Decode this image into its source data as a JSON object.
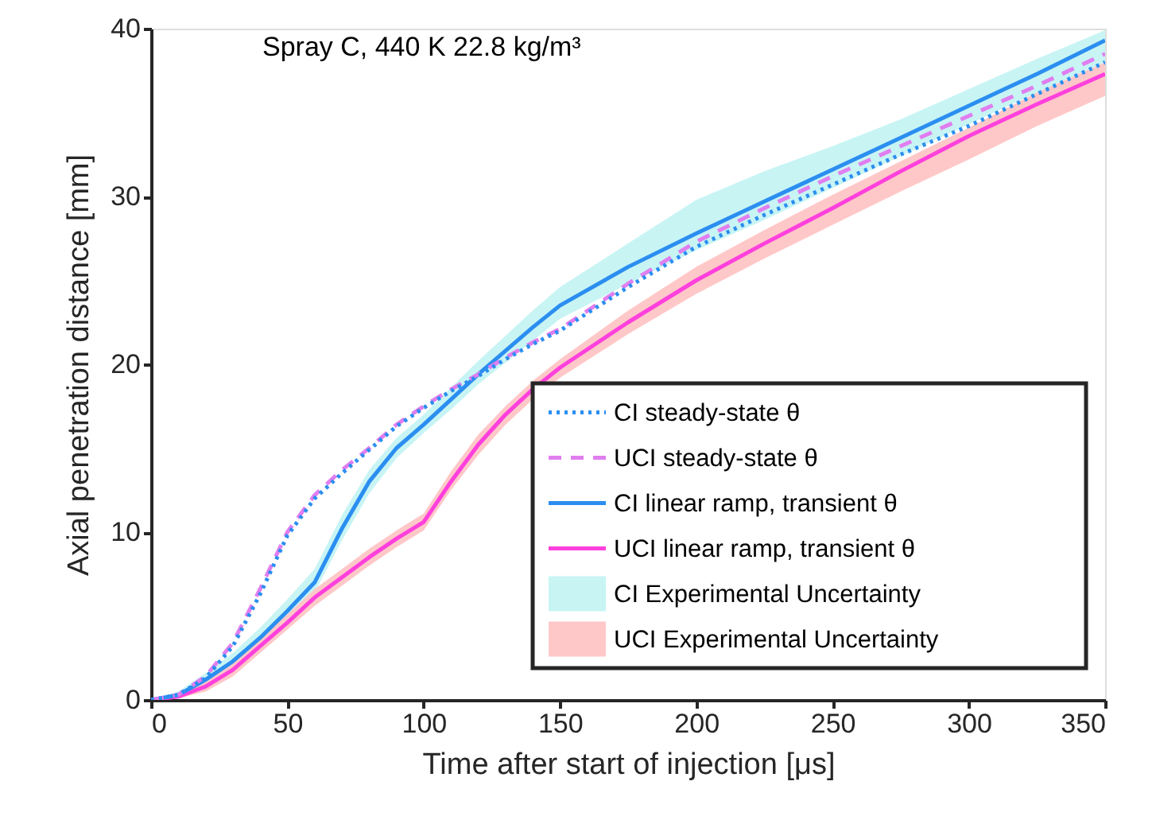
{
  "chart_data": {
    "type": "line",
    "title": "Spray C, 440 K 22.8 kg/m³",
    "xlabel": "Time after start of injection [μs]",
    "ylabel": "Axial penetration distance [mm]",
    "x": [
      0,
      10,
      20,
      30,
      40,
      50,
      60,
      70,
      80,
      90,
      100,
      110,
      120,
      130,
      140,
      150,
      175,
      200,
      225,
      250,
      275,
      300,
      325,
      350
    ],
    "xlim": [
      0,
      350
    ],
    "xticks": [
      0,
      50,
      100,
      150,
      200,
      250,
      300,
      350
    ],
    "ylim": [
      0,
      40
    ],
    "yticks": [
      0,
      10,
      20,
      30,
      40
    ],
    "legend": "bottom right",
    "series": [
      {
        "name": "CI steady-state θ",
        "line_style": "dotted",
        "color": "#2b8ef0",
        "values": [
          0,
          0.3,
          1.3,
          3.2,
          6.3,
          9.8,
          12,
          13.5,
          14.9,
          16.3,
          17.4,
          18.4,
          19.3,
          20.3,
          21.2,
          22,
          24.6,
          27,
          28.9,
          30.7,
          32.5,
          34.2,
          36.1,
          38.0
        ]
      },
      {
        "name": "UCI steady-state θ",
        "line_style": "dashed",
        "color": "#e07ef0",
        "values": [
          0,
          0.3,
          1.4,
          3.4,
          6.6,
          10,
          12.2,
          13.7,
          15,
          16.4,
          17.5,
          18.5,
          19.4,
          20.4,
          21.3,
          22.1,
          24.8,
          27.3,
          29.3,
          31.2,
          33,
          34.8,
          36.6,
          38.5
        ]
      },
      {
        "name": "CI linear ramp, transient θ",
        "line_style": "solid",
        "color": "#2b8ef0",
        "values": [
          0,
          0.3,
          1.2,
          2.3,
          3.7,
          5.3,
          7.0,
          10.2,
          13,
          15,
          16.4,
          17.9,
          19.4,
          20.8,
          22.2,
          23.5,
          25.8,
          27.8,
          29.7,
          31.6,
          33.5,
          35.4,
          37.3,
          39.3
        ]
      },
      {
        "name": "UCI linear ramp, transient θ",
        "line_style": "solid",
        "color": "#ff40dd",
        "values": [
          0,
          0.2,
          0.8,
          1.8,
          3.2,
          4.6,
          6.1,
          7.3,
          8.5,
          9.6,
          10.6,
          13,
          15.2,
          17,
          18.5,
          19.8,
          22.5,
          25,
          27.2,
          29.3,
          31.5,
          33.6,
          35.5,
          37.3
        ]
      },
      {
        "name": "CI Experimental Uncertainty",
        "type": "area",
        "color": "#c8f4f4",
        "values": [
          null,
          null,
          null,
          null,
          null,
          null,
          null,
          null,
          null,
          null,
          null,
          null,
          null,
          null,
          null,
          null,
          null,
          null,
          null,
          null,
          null,
          null,
          null,
          null
        ],
        "lower": [
          0,
          0.1,
          0.9,
          1.9,
          3.2,
          4.7,
          6.4,
          9.5,
          12.3,
          14.4,
          15.9,
          17.3,
          18.8,
          20.1,
          21.4,
          22.7,
          24.8,
          26.8,
          28.6,
          30.5,
          32.4,
          34.3,
          36.2,
          38.0
        ],
        "upper": [
          0,
          0.5,
          1.6,
          2.8,
          4.3,
          6,
          7.8,
          11,
          13.7,
          15.6,
          17,
          18.6,
          20.2,
          21.7,
          23.2,
          24.6,
          27.2,
          29.8,
          31.5,
          33,
          34.6,
          36.4,
          38.2,
          39.9
        ]
      },
      {
        "name": "UCI Experimental Uncertainty",
        "type": "area",
        "color": "#ffc8c8",
        "values": [
          null,
          null,
          null,
          null,
          null,
          null,
          null,
          null,
          null,
          null,
          null,
          null,
          null,
          null,
          null,
          null,
          null,
          null,
          null,
          null,
          null,
          null,
          null,
          null
        ],
        "lower": [
          0,
          0.1,
          0.5,
          1.4,
          2.8,
          4.2,
          5.6,
          6.8,
          8,
          9.1,
          10.1,
          12.5,
          14.6,
          16.4,
          17.9,
          19.2,
          21.8,
          24.2,
          26.3,
          28.3,
          30.3,
          32.2,
          34.2,
          36.0
        ],
        "upper": [
          0,
          0.4,
          1.2,
          2.3,
          3.7,
          5.1,
          6.6,
          7.8,
          9,
          10.1,
          11.1,
          13.6,
          15.8,
          17.5,
          19,
          20.3,
          23.2,
          25.8,
          28,
          30.1,
          32.1,
          34.1,
          36.2,
          38.0
        ]
      }
    ]
  }
}
